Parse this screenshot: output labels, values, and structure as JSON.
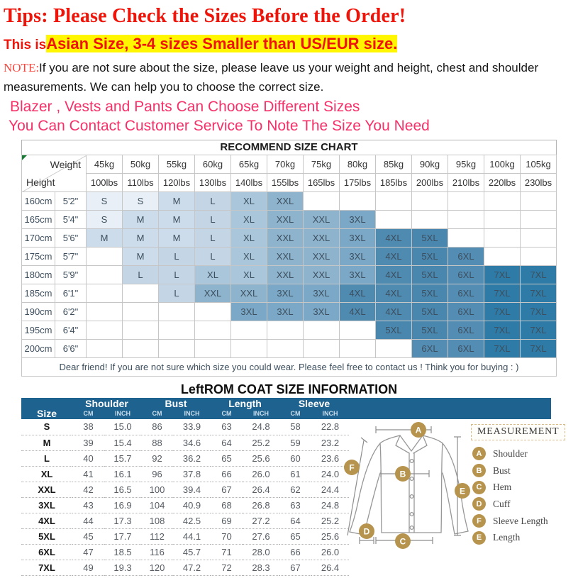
{
  "colors": {
    "red": "#ee1409",
    "highlight_yellow": "#fff600",
    "pink": "#f5316a",
    "table_band_blue": "#1e6390",
    "badge_gold": "#b7944d"
  },
  "header": {
    "title": "Tips: Please Check the Sizes Before the Order!",
    "subtitle_prefix": "This is",
    "subtitle_highlight": "Asian Size, 3-4 sizes Smaller than US/EUR size.",
    "note_label": "NOTE:",
    "note_text": "If you are not sure about the size, please leave us your weight and height, chest and shoulder measurements. We can help you to choose the correct size.",
    "pink_line1": "Blazer , Vests and Pants Can Choose Different Sizes",
    "pink_line2": "You Can Contact Customer Service To Note The Size You Need"
  },
  "size_chart": {
    "title": "RECOMMEND SIZE CHART",
    "corner": {
      "top": "Weight",
      "bottom": "Height"
    },
    "weights_kg": [
      "45kg",
      "50kg",
      "55kg",
      "60kg",
      "65kg",
      "70kg",
      "75kg",
      "80kg",
      "85kg",
      "90kg",
      "95kg",
      "100kg",
      "105kg"
    ],
    "weights_lbs": [
      "100lbs",
      "110lbs",
      "120lbs",
      "130lbs",
      "140lbs",
      "155lbs",
      "165lbs",
      "175lbs",
      "185lbs",
      "200lbs",
      "210lbs",
      "220lbs",
      "230lbs"
    ],
    "rows": [
      {
        "height_cm": "160cm",
        "height_ft": "5'2\"",
        "cells": [
          "S",
          "S",
          "M",
          "L",
          "XL",
          "XXL",
          "",
          "",
          "",
          "",
          "",
          "",
          ""
        ]
      },
      {
        "height_cm": "165cm",
        "height_ft": "5'4\"",
        "cells": [
          "S",
          "M",
          "M",
          "L",
          "XL",
          "XXL",
          "XXL",
          "3XL",
          "",
          "",
          "",
          "",
          ""
        ]
      },
      {
        "height_cm": "170cm",
        "height_ft": "5'6\"",
        "cells": [
          "M",
          "M",
          "M",
          "L",
          "XL",
          "XXL",
          "XXL",
          "3XL",
          "4XL",
          "5XL",
          "",
          "",
          ""
        ]
      },
      {
        "height_cm": "175cm",
        "height_ft": "5'7\"",
        "cells": [
          "",
          "M",
          "L",
          "L",
          "XL",
          "XXL",
          "XXL",
          "3XL",
          "4XL",
          "5XL",
          "6XL",
          "",
          ""
        ]
      },
      {
        "height_cm": "180cm",
        "height_ft": "5'9\"",
        "cells": [
          "",
          "L",
          "L",
          "XL",
          "XL",
          "XXL",
          "XXL",
          "3XL",
          "4XL",
          "5XL",
          "6XL",
          "7XL",
          "7XL"
        ]
      },
      {
        "height_cm": "185cm",
        "height_ft": "6'1\"",
        "cells": [
          "",
          "",
          "L",
          "XXL",
          "XXL",
          "3XL",
          "3XL",
          "4XL",
          "4XL",
          "5XL",
          "6XL",
          "7XL",
          "7XL"
        ]
      },
      {
        "height_cm": "190cm",
        "height_ft": "6'2\"",
        "cells": [
          "",
          "",
          "",
          "",
          "3XL",
          "3XL",
          "3XL",
          "4XL",
          "4XL",
          "5XL",
          "6XL",
          "7XL",
          "7XL"
        ]
      },
      {
        "height_cm": "195cm",
        "height_ft": "6'4\"",
        "cells": [
          "",
          "",
          "",
          "",
          "",
          "",
          "",
          "",
          "5XL",
          "5XL",
          "6XL",
          "7XL",
          "7XL"
        ]
      },
      {
        "height_cm": "200cm",
        "height_ft": "6'6\"",
        "cells": [
          "",
          "",
          "",
          "",
          "",
          "",
          "",
          "",
          "",
          "6XL",
          "6XL",
          "7XL",
          "7XL"
        ]
      }
    ],
    "size_colors": {
      "S": "#e9eff6",
      "M": "#cddcea",
      "L": "#c4d6e5",
      "XL": "#a9c6db",
      "XXL": "#8db3cd",
      "3XL": "#7ba8c6",
      "4XL": "#4f8ab1",
      "5XL": "#4987af",
      "6XL": "#548db4",
      "7XL": "#2e7ba7"
    },
    "footer_note": "Dear friend! If you are not sure which size you could wear. Please feel free to contact us ! Think you for buying  : )"
  },
  "coat_table": {
    "title": "LeftROM COAT SIZE INFORMATION",
    "size_header": "Size",
    "groups": [
      "Shoulder",
      "Bust",
      "Length",
      "Sleeve"
    ],
    "sub_headers": [
      "CM",
      "INCH"
    ],
    "rows": [
      {
        "size": "S",
        "values": [
          "38",
          "15.0",
          "86",
          "33.9",
          "63",
          "24.8",
          "58",
          "22.8"
        ]
      },
      {
        "size": "M",
        "values": [
          "39",
          "15.4",
          "88",
          "34.6",
          "64",
          "25.2",
          "59",
          "23.2"
        ]
      },
      {
        "size": "L",
        "values": [
          "40",
          "15.7",
          "92",
          "36.2",
          "65",
          "25.6",
          "60",
          "23.6"
        ]
      },
      {
        "size": "XL",
        "values": [
          "41",
          "16.1",
          "96",
          "37.8",
          "66",
          "26.0",
          "61",
          "24.0"
        ]
      },
      {
        "size": "XXL",
        "values": [
          "42",
          "16.5",
          "100",
          "39.4",
          "67",
          "26.4",
          "62",
          "24.4"
        ]
      },
      {
        "size": "3XL",
        "values": [
          "43",
          "16.9",
          "104",
          "40.9",
          "68",
          "26.8",
          "63",
          "24.8"
        ]
      },
      {
        "size": "4XL",
        "values": [
          "44",
          "17.3",
          "108",
          "42.5",
          "69",
          "27.2",
          "64",
          "25.2"
        ]
      },
      {
        "size": "5XL",
        "values": [
          "45",
          "17.7",
          "112",
          "44.1",
          "70",
          "27.6",
          "65",
          "25.6"
        ]
      },
      {
        "size": "6XL",
        "values": [
          "47",
          "18.5",
          "116",
          "45.7",
          "71",
          "28.0",
          "66",
          "26.0"
        ]
      },
      {
        "size": "7XL",
        "values": [
          "49",
          "19.3",
          "120",
          "47.2",
          "72",
          "28.3",
          "67",
          "26.4"
        ]
      }
    ]
  },
  "measurement": {
    "title": "MEASUREMENT",
    "badges": {
      "a": "A",
      "b": "B",
      "c": "C",
      "d": "D",
      "e": "E",
      "f": "F"
    },
    "legend": [
      {
        "letter": "A",
        "label": "Shoulder"
      },
      {
        "letter": "B",
        "label": "Bust"
      },
      {
        "letter": "C",
        "label": "Hem"
      },
      {
        "letter": "D",
        "label": "Cuff"
      },
      {
        "letter": "F",
        "label": "Sleeve Length"
      },
      {
        "letter": "E",
        "label": "Length"
      }
    ]
  }
}
